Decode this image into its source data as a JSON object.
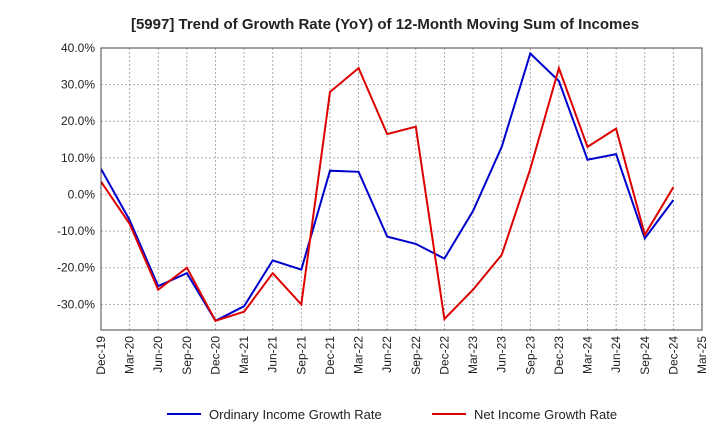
{
  "chart_data": {
    "type": "line",
    "title": "[5997]  Trend of Growth Rate (YoY) of 12-Month Moving Sum of Incomes",
    "xlabel": "",
    "ylabel": "",
    "ylim": [
      -37,
      40
    ],
    "yticks": [
      "40.0%",
      "30.0%",
      "20.0%",
      "10.0%",
      "0.0%",
      "-10.0%",
      "-20.0%",
      "-30.0%"
    ],
    "ytick_values": [
      40,
      30,
      20,
      10,
      0,
      -10,
      -20,
      -30
    ],
    "x_tick_labels": [
      "Dec-19",
      "Mar-20",
      "Jun-20",
      "Sep-20",
      "Dec-20",
      "Mar-21",
      "Jun-21",
      "Sep-21",
      "Dec-21",
      "Mar-22",
      "Jun-22",
      "Sep-22",
      "Dec-22",
      "Mar-23",
      "Jun-23",
      "Sep-23",
      "Dec-23",
      "Mar-24",
      "Jun-24",
      "Sep-24",
      "Dec-24",
      "Mar-25"
    ],
    "grid": true,
    "legend_position": "bottom",
    "series": [
      {
        "name": "Ordinary Income Growth Rate",
        "color": "#0000cc",
        "values": [
          7.0,
          -7.0,
          -25.0,
          -21.5,
          -34.5,
          -30.5,
          -18.0,
          -20.5,
          6.5,
          6.2,
          -11.5,
          -13.5,
          -17.5,
          -4.5,
          13.0,
          38.5,
          31.0,
          9.5,
          11.0,
          -12.0,
          -1.5
        ]
      },
      {
        "name": "Net Income Growth Rate",
        "color": "#dd0000",
        "values": [
          3.5,
          -8.0,
          -26.0,
          -20.0,
          -34.5,
          -32.0,
          -21.5,
          -30.0,
          28.0,
          34.5,
          16.5,
          18.5,
          -34.0,
          -26.0,
          -16.5,
          7.0,
          34.5,
          13.0,
          18.0,
          -11.0,
          2.0
        ]
      }
    ]
  }
}
